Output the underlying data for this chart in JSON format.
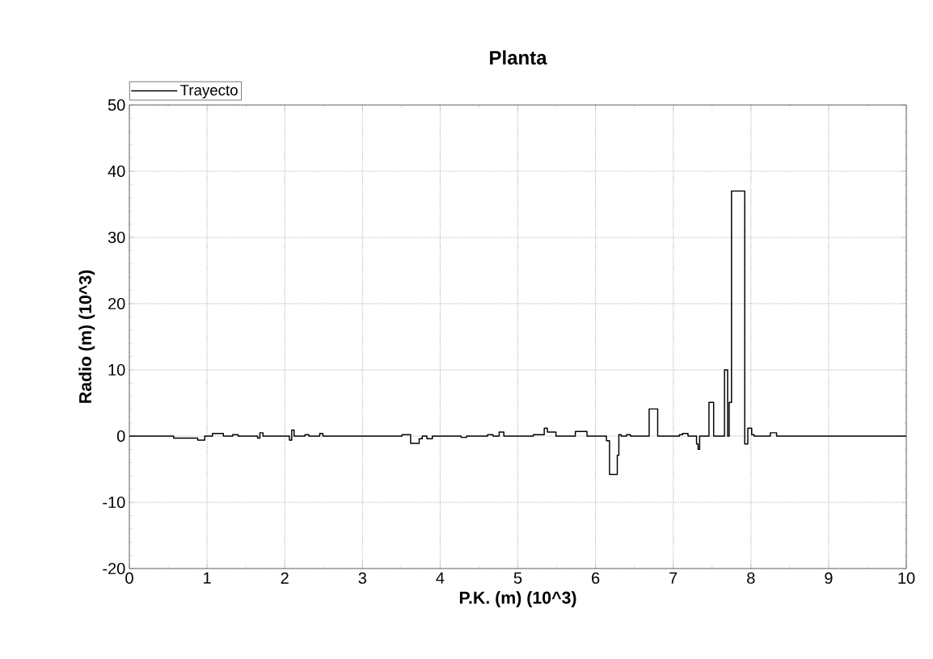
{
  "chart_data": {
    "type": "step",
    "title": "Planta",
    "xlabel": "P.K. (m) (10^3)",
    "ylabel": "Radio (m) (10^3)",
    "xlim": [
      0,
      10
    ],
    "ylim": [
      -20,
      50
    ],
    "xticks": [
      0,
      1,
      2,
      3,
      4,
      5,
      6,
      7,
      8,
      9,
      10
    ],
    "yticks": [
      -20,
      -10,
      0,
      10,
      20,
      30,
      40,
      50
    ],
    "grid": true,
    "legend": "top left",
    "marker": "none",
    "line_style": "solid",
    "series": [
      {
        "name": "Trayecto",
        "color": "#000000",
        "x": [
          0,
          0.57,
          0.88,
          0.97,
          1.07,
          1.21,
          1.33,
          1.4,
          1.65,
          1.68,
          1.72,
          2.06,
          2.09,
          2.12,
          2.26,
          2.31,
          2.45,
          2.49,
          3.51,
          3.62,
          3.73,
          3.77,
          3.83,
          3.9,
          4.27,
          4.34,
          4.61,
          4.68,
          4.76,
          4.82,
          5.2,
          5.34,
          5.38,
          5.49,
          5.74,
          5.89,
          6.14,
          6.18,
          6.28,
          6.3,
          6.33,
          6.4,
          6.45,
          6.69,
          6.8,
          7.08,
          7.12,
          7.19,
          7.3,
          7.32,
          7.34,
          7.46,
          7.52,
          7.66,
          7.7,
          7.72,
          7.75,
          7.92,
          7.96,
          8.01,
          8.04,
          8.25,
          8.33,
          10
        ],
        "values": [
          0,
          -0.3,
          -0.6,
          0,
          0.4,
          0,
          0.2,
          0,
          -0.3,
          0.5,
          0,
          -0.6,
          0.9,
          0,
          0.2,
          0,
          0.4,
          0,
          0.2,
          -1.1,
          -0.4,
          0,
          -0.4,
          0,
          -0.2,
          0,
          0.2,
          0,
          0.6,
          0,
          0.2,
          1.2,
          0.6,
          0,
          0.7,
          0,
          -0.7,
          -5.8,
          -2.9,
          0.2,
          0,
          0.2,
          0,
          4.1,
          0,
          0.2,
          0.4,
          0,
          -1.2,
          -2.0,
          0,
          5.1,
          0,
          10.0,
          0,
          5.1,
          37.0,
          -1.2,
          1.2,
          0.2,
          0,
          0.5,
          0,
          0
        ]
      }
    ]
  }
}
